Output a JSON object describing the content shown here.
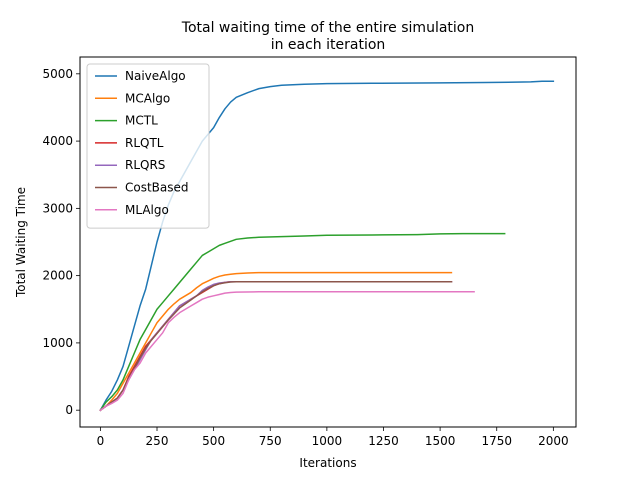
{
  "chart_data": {
    "type": "line",
    "title": [
      "Total waiting time of the entire simulation",
      "in each iteration"
    ],
    "xlabel": "Iterations",
    "ylabel": "Total Waiting Time",
    "xlim": [
      -90,
      2100
    ],
    "ylim": [
      -250,
      5250
    ],
    "xticks": [
      0,
      250,
      500,
      750,
      1000,
      1250,
      1500,
      1750,
      2000
    ],
    "yticks": [
      0,
      1000,
      2000,
      3000,
      4000,
      5000
    ],
    "grid": false,
    "legend_position": "top-left",
    "series": [
      {
        "name": "NaiveAlgo",
        "color": "#1f77b4",
        "x": [
          0,
          25,
          50,
          75,
          100,
          125,
          150,
          175,
          200,
          225,
          250,
          275,
          300,
          325,
          350,
          375,
          400,
          425,
          450,
          475,
          500,
          525,
          550,
          575,
          600,
          650,
          700,
          750,
          800,
          900,
          1000,
          1200,
          1500,
          1700,
          1900,
          1950,
          2000
        ],
        "y": [
          0,
          150,
          280,
          450,
          650,
          950,
          1250,
          1550,
          1800,
          2150,
          2500,
          2800,
          3050,
          3250,
          3400,
          3550,
          3700,
          3850,
          4000,
          4100,
          4200,
          4350,
          4480,
          4580,
          4650,
          4720,
          4780,
          4810,
          4830,
          4845,
          4855,
          4860,
          4865,
          4870,
          4880,
          4890,
          4890
        ]
      },
      {
        "name": "MCAlgo",
        "color": "#ff7f0e",
        "x": [
          0,
          25,
          50,
          75,
          100,
          125,
          150,
          175,
          200,
          225,
          250,
          275,
          300,
          325,
          350,
          375,
          400,
          425,
          450,
          475,
          500,
          525,
          550,
          575,
          600,
          650,
          700,
          800,
          1000,
          1200,
          1400,
          1550
        ],
        "y": [
          0,
          60,
          150,
          250,
          400,
          550,
          700,
          850,
          1000,
          1150,
          1300,
          1400,
          1500,
          1580,
          1650,
          1700,
          1750,
          1820,
          1880,
          1920,
          1960,
          1990,
          2010,
          2020,
          2030,
          2040,
          2045,
          2045,
          2045,
          2045,
          2045,
          2045
        ]
      },
      {
        "name": "MCTL",
        "color": "#2ca02c",
        "x": [
          0,
          25,
          50,
          75,
          100,
          125,
          150,
          175,
          200,
          225,
          250,
          275,
          300,
          325,
          350,
          375,
          400,
          425,
          450,
          475,
          500,
          525,
          550,
          575,
          600,
          650,
          700,
          800,
          900,
          1000,
          1200,
          1400,
          1500,
          1600,
          1785
        ],
        "y": [
          0,
          120,
          200,
          300,
          450,
          650,
          850,
          1050,
          1200,
          1350,
          1500,
          1600,
          1700,
          1800,
          1900,
          2000,
          2100,
          2200,
          2300,
          2350,
          2400,
          2450,
          2480,
          2510,
          2540,
          2560,
          2570,
          2580,
          2590,
          2600,
          2605,
          2610,
          2620,
          2625,
          2625
        ]
      },
      {
        "name": "RLQTL",
        "color": "#d62728",
        "x": [
          0,
          25,
          50,
          75,
          100,
          125,
          150,
          175,
          200,
          225,
          250,
          275,
          300,
          325,
          350,
          375,
          400,
          425,
          450,
          475,
          500,
          525,
          550,
          575,
          600,
          700,
          800,
          1000,
          1200,
          1400,
          1550
        ],
        "y": [
          0,
          60,
          120,
          180,
          300,
          500,
          650,
          800,
          950,
          1050,
          1150,
          1250,
          1350,
          1450,
          1550,
          1600,
          1650,
          1700,
          1750,
          1800,
          1850,
          1880,
          1900,
          1910,
          1910,
          1910,
          1910,
          1910,
          1910,
          1910,
          1910
        ]
      },
      {
        "name": "RLQRS",
        "color": "#9467bd",
        "x": [
          0,
          25,
          50,
          75,
          100,
          125,
          150,
          175,
          200,
          225,
          250,
          275,
          300,
          325,
          350,
          375,
          400,
          425,
          450,
          475,
          500,
          525,
          550,
          575,
          600,
          700,
          800,
          1000,
          1200,
          1400,
          1550
        ],
        "y": [
          0,
          60,
          120,
          180,
          300,
          450,
          600,
          750,
          900,
          1050,
          1150,
          1250,
          1350,
          1450,
          1550,
          1600,
          1650,
          1700,
          1780,
          1830,
          1870,
          1890,
          1900,
          1910,
          1910,
          1910,
          1910,
          1910,
          1910,
          1910,
          1910
        ]
      },
      {
        "name": "CostBased",
        "color": "#8c564b",
        "x": [
          0,
          25,
          50,
          75,
          100,
          125,
          150,
          175,
          200,
          225,
          250,
          275,
          300,
          325,
          350,
          375,
          400,
          425,
          450,
          475,
          500,
          525,
          550,
          575,
          600,
          700,
          800,
          1000,
          1200,
          1400,
          1550
        ],
        "y": [
          0,
          60,
          120,
          180,
          300,
          480,
          620,
          780,
          920,
          1040,
          1140,
          1240,
          1340,
          1430,
          1520,
          1580,
          1640,
          1700,
          1760,
          1810,
          1850,
          1880,
          1895,
          1905,
          1910,
          1910,
          1910,
          1910,
          1910,
          1910,
          1910
        ]
      },
      {
        "name": "MLAlgo",
        "color": "#e377c2",
        "x": [
          0,
          25,
          50,
          75,
          100,
          125,
          150,
          175,
          200,
          225,
          250,
          275,
          300,
          325,
          350,
          375,
          400,
          425,
          450,
          475,
          500,
          525,
          550,
          575,
          600,
          700,
          800,
          1000,
          1200,
          1400,
          1600,
          1650
        ],
        "y": [
          0,
          60,
          100,
          150,
          250,
          450,
          600,
          700,
          850,
          950,
          1050,
          1150,
          1300,
          1380,
          1450,
          1500,
          1550,
          1600,
          1650,
          1680,
          1700,
          1720,
          1740,
          1750,
          1755,
          1760,
          1760,
          1760,
          1760,
          1760,
          1760,
          1760
        ]
      }
    ]
  }
}
